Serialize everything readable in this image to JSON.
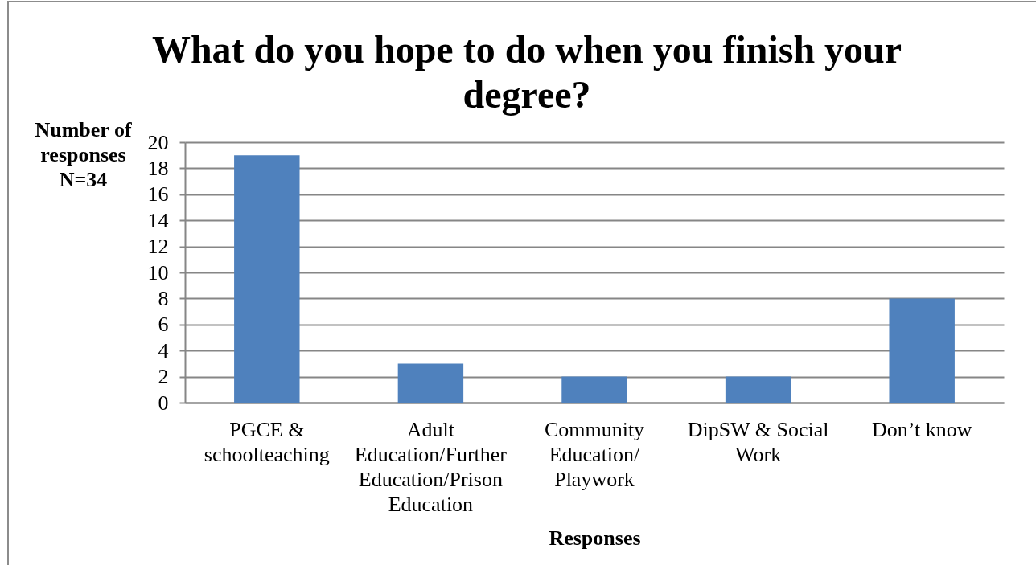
{
  "chart_data": {
    "type": "bar",
    "title": "What do you hope to do when you finish your degree?",
    "xlabel": "Responses",
    "ylabel": "Number of responses N=34",
    "categories": [
      "PGCE & schoolteaching",
      "Adult Education/Further Education/Prison Education",
      "Community Education/ Playwork",
      "DipSW & Social Work",
      "Don’t know"
    ],
    "values": [
      19,
      3,
      2,
      2,
      8
    ],
    "color": "#4f81bd",
    "ylim": [
      0,
      20
    ],
    "yticks": [
      0,
      2,
      4,
      6,
      8,
      10,
      12,
      14,
      16,
      18,
      20
    ],
    "grid": "y"
  }
}
